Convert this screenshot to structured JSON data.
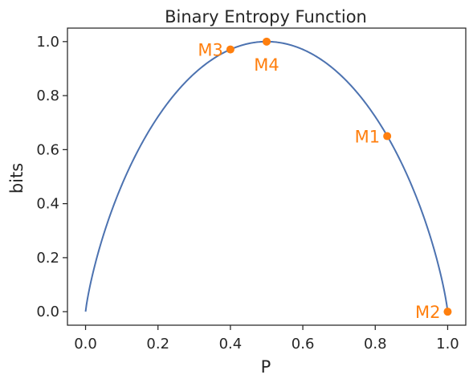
{
  "chart_data": {
    "type": "line",
    "title": "Binary Entropy Function",
    "xlabel": "P",
    "ylabel": "bits",
    "xlim": [
      -0.05,
      1.05
    ],
    "ylim": [
      -0.05,
      1.05
    ],
    "xticks": [
      0.0,
      0.2,
      0.4,
      0.6,
      0.8,
      1.0
    ],
    "xtick_labels": [
      "0.0",
      "0.2",
      "0.4",
      "0.6",
      "0.8",
      "1.0"
    ],
    "yticks": [
      0.0,
      0.2,
      0.4,
      0.6,
      0.8,
      1.0
    ],
    "ytick_labels": [
      "0.0",
      "0.2",
      "0.4",
      "0.6",
      "0.8",
      "1.0"
    ],
    "grid": false,
    "series": [
      {
        "function": "binary_entropy",
        "x_range": [
          0.0,
          1.0
        ],
        "color": "#4c72b0"
      }
    ],
    "points": [
      {
        "label": "M1",
        "x": 0.833,
        "y": 0.65,
        "label_side": "left"
      },
      {
        "label": "M2",
        "x": 1.0,
        "y": 0.0,
        "label_side": "left"
      },
      {
        "label": "M3",
        "x": 0.4,
        "y": 0.971,
        "label_side": "left"
      },
      {
        "label": "M4",
        "x": 0.5,
        "y": 1.0,
        "label_side": "below"
      }
    ],
    "point_color": "#ff7f0e"
  }
}
